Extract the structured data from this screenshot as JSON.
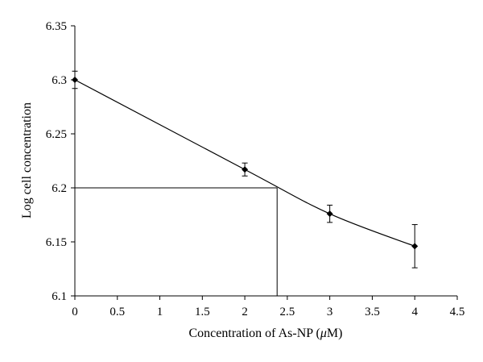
{
  "chart_data": {
    "type": "scatter",
    "title": "",
    "xlabel_prefix": "Concentration of As-NP (",
    "xlabel_unit_mu": "μ",
    "xlabel_suffix": "M)",
    "ylabel": "Log cell concentration",
    "xlim": [
      0,
      4.5
    ],
    "ylim": [
      6.1,
      6.35
    ],
    "x_ticks": [
      "0",
      "0.5",
      "1",
      "1.5",
      "2",
      "2.5",
      "3",
      "3.5",
      "4",
      "4.5"
    ],
    "y_ticks": [
      "6.1",
      "6.15",
      "6.2",
      "6.25",
      "6.3",
      "6.35"
    ],
    "grid": false,
    "legend": "none",
    "series": [
      {
        "points": [
          {
            "x": 0,
            "y": 6.3,
            "err": 0.008
          },
          {
            "x": 2,
            "y": 6.217,
            "err": 0.006
          },
          {
            "x": 3,
            "y": 6.176,
            "err": 0.008
          },
          {
            "x": 4,
            "y": 6.146,
            "err": 0.02
          }
        ],
        "trendline": "smooth"
      }
    ],
    "reference_lines": {
      "y": 6.2,
      "x": 2.38
    },
    "color": "#000000"
  }
}
